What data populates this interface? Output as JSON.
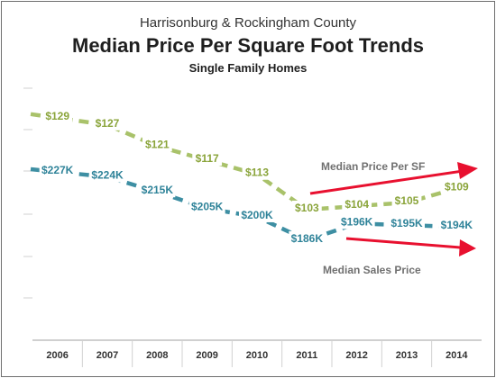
{
  "chart_data": {
    "type": "line",
    "title": "Median Price Per Square Foot Trends",
    "suptitle": "Harrisonburg & Rockingham County",
    "subtitle": "Single Family Homes",
    "categories": [
      "2006",
      "2007",
      "2008",
      "2009",
      "2010",
      "2011",
      "2012",
      "2013",
      "2014"
    ],
    "series": [
      {
        "name": "Median Price Per SF",
        "values": [
          129,
          127,
          121,
          117,
          113,
          103,
          104,
          105,
          109
        ],
        "labels": [
          "$129",
          "$127",
          "$121",
          "$117",
          "$113",
          "$103",
          "$104",
          "$105",
          "$109"
        ],
        "color": "#a9c26a",
        "label_color": "#8aa43a"
      },
      {
        "name": "Median Sales Price",
        "values": [
          227,
          224,
          215,
          205,
          200,
          186,
          196,
          195,
          194
        ],
        "labels": [
          "$227K",
          "$224K",
          "$215K",
          "$205K",
          "$200K",
          "$186K",
          "$196K",
          "$195K",
          "$194K"
        ],
        "color": "#3e8fa3",
        "label_color": "#2f8399"
      }
    ],
    "annotations": [
      "Median Price Per SF",
      "Median Sales Price"
    ],
    "arrow_color": "#e8102f",
    "legend": "none",
    "grid": false
  }
}
